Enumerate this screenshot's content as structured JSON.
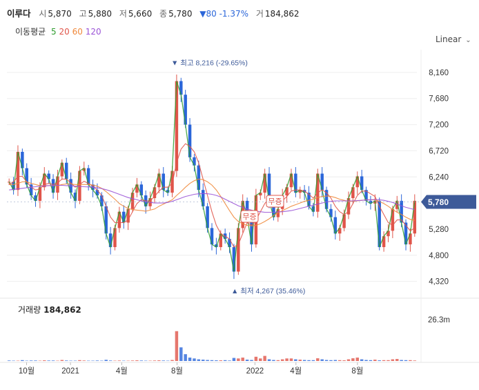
{
  "header": {
    "stock_name": "이루다",
    "open_label": "시",
    "open_value": "5,870",
    "high_label": "고",
    "high_value": "5,880",
    "low_label": "저",
    "low_value": "5,660",
    "close_label": "종",
    "close_value": "5,780",
    "change_text": "▼80 -1.37%",
    "volume_label": "거",
    "volume_value": "184,862"
  },
  "ma_legend": {
    "title": "이동평균",
    "items": [
      {
        "label": "5",
        "color": "#2e9c2e"
      },
      {
        "label": "20",
        "color": "#e0554a"
      },
      {
        "label": "60",
        "color": "#f0883a"
      },
      {
        "label": "120",
        "color": "#9a53d6"
      }
    ]
  },
  "scale_button": "Linear",
  "volume_panel": {
    "title": "거래량",
    "value": "184,862",
    "axis_max_label": "26.3m"
  },
  "colors": {
    "up": "#e0554a",
    "down": "#2b66d9",
    "grid": "#eeeeee",
    "current_price_tag": "#3d5a99"
  },
  "chart_data": {
    "type": "candlestick",
    "x_ticks": [
      "10월",
      "2021",
      "4월",
      "8월",
      "2022",
      "4월",
      "8월"
    ],
    "y_ticks": [
      "8,160",
      "7,680",
      "7,200",
      "6,720",
      "6,240",
      "5,780",
      "5,280",
      "4,800",
      "4,320"
    ],
    "ylim": [
      4100,
      8450
    ],
    "current_price": {
      "value": 5780,
      "label": "5,780"
    },
    "high_annotation": {
      "value": 8216,
      "text": "▼ 최고 8,216 (-29.65%)"
    },
    "low_annotation": {
      "value": 4267,
      "text": "▲ 최저 4,267 (35.46%)"
    },
    "badges": [
      "무증",
      "무증"
    ],
    "series": [
      {
        "name": "5",
        "close": [
          6150,
          6000,
          6700,
          6400,
          6100,
          5900,
          5800,
          6050,
          6300,
          6200,
          5950,
          6250,
          6500,
          6200,
          5950,
          5800,
          6350,
          6400,
          6100,
          6000,
          5900,
          5700,
          5200,
          4950,
          5300,
          5600,
          5400,
          5650,
          5950,
          6100,
          5900,
          5700,
          5850,
          6050,
          6300,
          6000,
          5950,
          6350,
          8000,
          7750,
          7200,
          6600,
          6450,
          6000,
          5700,
          5300,
          5000,
          4950,
          5200,
          5100,
          4950,
          4500,
          5300,
          5800,
          5500,
          5000,
          5900,
          5950,
          6300,
          5800,
          5500,
          5650,
          5900,
          6050,
          6300,
          5950,
          6000,
          5950,
          5700,
          5600,
          6300,
          6000,
          5650,
          5500,
          5200,
          5300,
          5550,
          5850,
          6050,
          6250,
          6000,
          5800,
          5750,
          5800,
          4950,
          5150,
          5250,
          5650,
          5800,
          5400,
          5000,
          5200,
          5800
        ]
      },
      {
        "name": "20",
        "close": [
          6100,
          6150,
          6250,
          6250,
          6150,
          6050,
          6000,
          6020,
          6100,
          6120,
          6100,
          6130,
          6200,
          6200,
          6130,
          6050,
          6100,
          6160,
          6120,
          6070,
          6000,
          5900,
          5700,
          5500,
          5400,
          5400,
          5400,
          5450,
          5600,
          5750,
          5820,
          5800,
          5800,
          5880,
          5980,
          6050,
          6050,
          6120,
          6500,
          6750,
          6850,
          6800,
          6700,
          6500,
          6200,
          5900,
          5600,
          5350,
          5200,
          5150,
          5100,
          4950,
          5000,
          5200,
          5400,
          5350,
          5450,
          5600,
          5750,
          5850,
          5800,
          5750,
          5800,
          5880,
          5980,
          6000,
          6000,
          5980,
          5920,
          5850,
          5950,
          6000,
          5950,
          5850,
          5700,
          5600,
          5550,
          5600,
          5750,
          5900,
          5980,
          5980,
          5930,
          5880,
          5700,
          5550,
          5400,
          5350,
          5450,
          5450,
          5350,
          5250,
          5300
        ]
      },
      {
        "name": "60",
        "close": [
          6100,
          6100,
          6120,
          6150,
          6150,
          6120,
          6100,
          6080,
          6080,
          6080,
          6080,
          6080,
          6100,
          6110,
          6110,
          6100,
          6100,
          6100,
          6100,
          6090,
          6070,
          6030,
          5970,
          5900,
          5830,
          5750,
          5700,
          5660,
          5640,
          5630,
          5620,
          5610,
          5630,
          5650,
          5700,
          5740,
          5780,
          5820,
          5900,
          5970,
          6050,
          6120,
          6170,
          6200,
          6190,
          6150,
          6090,
          6000,
          5880,
          5750,
          5620,
          5500,
          5420,
          5380,
          5350,
          5340,
          5350,
          5380,
          5420,
          5470,
          5530,
          5580,
          5620,
          5660,
          5700,
          5730,
          5760,
          5790,
          5810,
          5830,
          5860,
          5880,
          5890,
          5880,
          5860,
          5830,
          5810,
          5790,
          5790,
          5800,
          5810,
          5820,
          5820,
          5820,
          5790,
          5750,
          5700,
          5640,
          5590,
          5550,
          5500,
          5460,
          5440
        ]
      },
      {
        "name": "120",
        "close": [
          6000,
          6010,
          6020,
          6030,
          6040,
          6050,
          6060,
          6070,
          6075,
          6080,
          6085,
          6085,
          6085,
          6080,
          6075,
          6070,
          6065,
          6060,
          6055,
          6050,
          6040,
          6025,
          6005,
          5980,
          5950,
          5920,
          5890,
          5860,
          5840,
          5820,
          5800,
          5780,
          5770,
          5760,
          5760,
          5760,
          5770,
          5790,
          5820,
          5850,
          5880,
          5900,
          5920,
          5930,
          5935,
          5930,
          5920,
          5900,
          5870,
          5830,
          5790,
          5750,
          5710,
          5680,
          5650,
          5630,
          5610,
          5600,
          5590,
          5590,
          5590,
          5595,
          5600,
          5610,
          5620,
          5640,
          5660,
          5680,
          5700,
          5720,
          5740,
          5760,
          5780,
          5790,
          5800,
          5800,
          5800,
          5800,
          5800,
          5805,
          5810,
          5815,
          5820,
          5825,
          5820,
          5810,
          5790,
          5770,
          5740,
          5710,
          5680,
          5660,
          5640
        ]
      }
    ],
    "volume_ylim": [
      0,
      26300000
    ],
    "volume": [
      0.3,
      0.2,
      0.2,
      0.5,
      0.2,
      0.3,
      0.3,
      0.2,
      0.4,
      0.3,
      0.3,
      0.2,
      0.6,
      0.3,
      0.2,
      0.2,
      0.5,
      0.3,
      0.2,
      0.2,
      0.3,
      0.2,
      0.7,
      0.3,
      0.2,
      0.3,
      0.2,
      0.2,
      0.3,
      0.4,
      0.3,
      0.2,
      0.2,
      0.3,
      0.4,
      0.3,
      0.2,
      0.6,
      17.5,
      8.0,
      4.0,
      2.0,
      1.5,
      1.0,
      0.8,
      0.6,
      0.5,
      0.4,
      0.4,
      0.5,
      0.3,
      1.8,
      1.5,
      2.0,
      0.8,
      0.6,
      2.5,
      1.5,
      3.0,
      1.0,
      0.6,
      0.5,
      1.0,
      1.5,
      1.5,
      1.0,
      0.8,
      0.6,
      0.5,
      0.5,
      1.6,
      1.0,
      0.6,
      0.5,
      0.6,
      0.5,
      0.4,
      1.0,
      1.6,
      2.0,
      1.0,
      0.6,
      0.5,
      0.8,
      0.4,
      0.5,
      0.5,
      1.0,
      1.2,
      0.6,
      0.5,
      0.5,
      0.3
    ]
  }
}
